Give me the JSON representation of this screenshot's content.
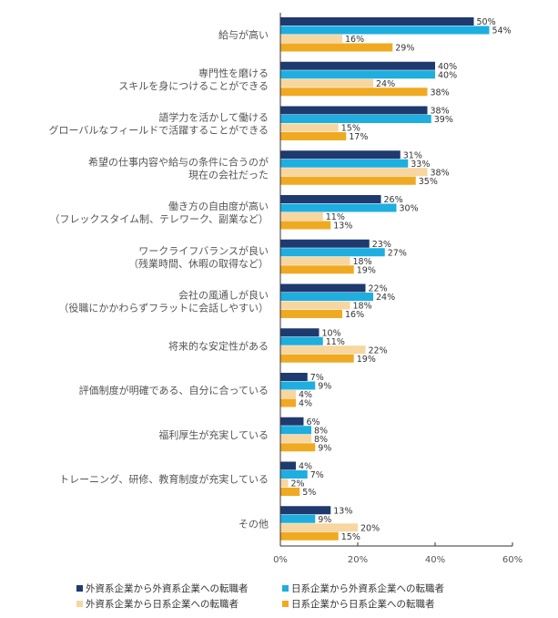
{
  "chart_data": {
    "type": "bar",
    "orientation": "horizontal",
    "categories": [
      [
        "給与が高い"
      ],
      [
        "専門性を磨ける",
        "スキルを身につけることができる"
      ],
      [
        "語学力を活かして働ける",
        "グローバルなフィールドで活躍することができる"
      ],
      [
        "希望の仕事内容や給与の条件に合うのが",
        "現在の会社だった"
      ],
      [
        "働き方の自由度が高い",
        "（フレックスタイム制、テレワーク、副業など）"
      ],
      [
        "ワークライフバランスが良い",
        "（残業時間、休暇の取得など）"
      ],
      [
        "会社の風通しが良い",
        "（役職にかかわらずフラットに会話しやすい）"
      ],
      [
        "将来的な安定性がある"
      ],
      [
        "評価制度が明確である、自分に合っている"
      ],
      [
        "福利厚生が充実している"
      ],
      [
        "トレーニング、研修、教育制度が充実している"
      ],
      [
        "その他"
      ]
    ],
    "series": [
      {
        "name": "外資系企業から外資系企業への転職者",
        "color": "#1f3a6e",
        "values": [
          50,
          40,
          38,
          31,
          26,
          23,
          22,
          10,
          7,
          6,
          4,
          13
        ]
      },
      {
        "name": "日系企業から外資系企業への転職者",
        "color": "#1eaee0",
        "values": [
          54,
          40,
          39,
          33,
          30,
          27,
          24,
          11,
          9,
          8,
          7,
          9
        ]
      },
      {
        "name": "外資系企業から日系企業への転職者",
        "color": "#f8d6a0",
        "values": [
          16,
          24,
          15,
          38,
          11,
          18,
          18,
          22,
          4,
          8,
          2,
          20
        ]
      },
      {
        "name": "日系企業から日系企業への転職者",
        "color": "#f0aa22",
        "values": [
          29,
          38,
          17,
          35,
          13,
          19,
          16,
          19,
          4,
          9,
          5,
          15
        ]
      }
    ],
    "xlim": [
      0,
      60
    ],
    "xticks": [
      "0%",
      "20%",
      "40%",
      "60%"
    ],
    "value_suffix": "%",
    "grid": false,
    "legend_position": "bottom"
  }
}
